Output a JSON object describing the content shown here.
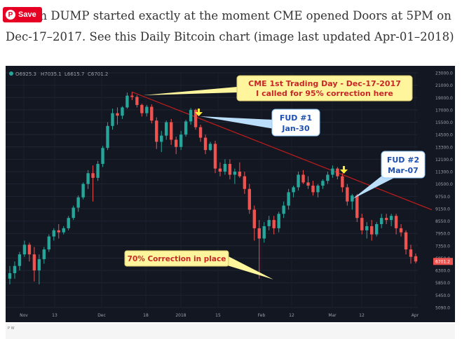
{
  "caption": {
    "line1": "Bitcoin DUMP started exactly at the moment CME opened Doors at 5PM on",
    "line2": "Dec-17–2017. See this Daily Bitcoin chart (image last updated Apr-01–2018)"
  },
  "save_button": {
    "label": "Save",
    "icon": "pinterest-icon"
  },
  "footer_text": "P W",
  "colors": {
    "background": "#131722",
    "up": "#26a69a",
    "down": "#ef5350",
    "trendline": "#b71c1c",
    "callout_fill": "#fff59d",
    "callout_text": "#c62828"
  },
  "chart_data": {
    "type": "candlestick",
    "ohlc_legend": {
      "o": "O6925.3",
      "h": "H7035.1",
      "l": "L6615.7",
      "c": "C6701.2"
    },
    "price_axis": [
      "23000.0",
      "21000.0",
      "19000.0",
      "17000.0",
      "15500.0",
      "14500.0",
      "13300.0",
      "12100.0",
      "11300.0",
      "10500.0",
      "9750.0",
      "9150.0",
      "8550.0",
      "7950.0",
      "7350.0",
      "6850.0",
      "6300.0",
      "5850.0",
      "5450.0",
      "5090.0"
    ],
    "last_price": "6701.2",
    "time_axis": [
      "Nov",
      "13",
      "Dec",
      "18",
      "2018",
      "15",
      "Feb",
      "12",
      "Mar",
      "12",
      "Apr"
    ],
    "candles": [
      {
        "o": 6000,
        "h": 6500,
        "l": 5800,
        "c": 6200
      },
      {
        "o": 6200,
        "h": 6700,
        "l": 6000,
        "c": 6500
      },
      {
        "o": 6500,
        "h": 7100,
        "l": 6300,
        "c": 7000
      },
      {
        "o": 7000,
        "h": 7600,
        "l": 6900,
        "c": 7400
      },
      {
        "o": 7400,
        "h": 7500,
        "l": 6700,
        "c": 7000
      },
      {
        "o": 7000,
        "h": 7300,
        "l": 5900,
        "c": 6300
      },
      {
        "o": 6300,
        "h": 7000,
        "l": 5800,
        "c": 6800
      },
      {
        "o": 6800,
        "h": 7300,
        "l": 6600,
        "c": 7200
      },
      {
        "o": 7200,
        "h": 7900,
        "l": 7100,
        "c": 7800
      },
      {
        "o": 7800,
        "h": 8200,
        "l": 7600,
        "c": 8100
      },
      {
        "o": 8100,
        "h": 8400,
        "l": 7700,
        "c": 8000
      },
      {
        "o": 8000,
        "h": 8300,
        "l": 7900,
        "c": 8200
      },
      {
        "o": 8200,
        "h": 8800,
        "l": 8100,
        "c": 8700
      },
      {
        "o": 8700,
        "h": 9300,
        "l": 8600,
        "c": 9200
      },
      {
        "o": 9200,
        "h": 9800,
        "l": 9000,
        "c": 9700
      },
      {
        "o": 9700,
        "h": 10600,
        "l": 9600,
        "c": 10500
      },
      {
        "o": 10500,
        "h": 11400,
        "l": 10200,
        "c": 11200
      },
      {
        "o": 11200,
        "h": 11700,
        "l": 9500,
        "c": 10900
      },
      {
        "o": 10900,
        "h": 12000,
        "l": 10700,
        "c": 11800
      },
      {
        "o": 11800,
        "h": 13400,
        "l": 11600,
        "c": 13200
      },
      {
        "o": 13200,
        "h": 15500,
        "l": 13000,
        "c": 15200
      },
      {
        "o": 15200,
        "h": 17200,
        "l": 14900,
        "c": 16600
      },
      {
        "o": 16600,
        "h": 17400,
        "l": 15300,
        "c": 16300
      },
      {
        "o": 16300,
        "h": 17600,
        "l": 15900,
        "c": 17400
      },
      {
        "o": 17400,
        "h": 19800,
        "l": 17200,
        "c": 19300
      },
      {
        "o": 19300,
        "h": 19900,
        "l": 18600,
        "c": 19100
      },
      {
        "o": 19100,
        "h": 19400,
        "l": 17400,
        "c": 17800
      },
      {
        "o": 17800,
        "h": 18000,
        "l": 16200,
        "c": 16600
      },
      {
        "o": 16600,
        "h": 17800,
        "l": 16200,
        "c": 17500
      },
      {
        "o": 17500,
        "h": 17900,
        "l": 15400,
        "c": 15700
      },
      {
        "o": 15700,
        "h": 16100,
        "l": 13100,
        "c": 13800
      },
      {
        "o": 13800,
        "h": 14800,
        "l": 12800,
        "c": 14400
      },
      {
        "o": 14400,
        "h": 15700,
        "l": 14000,
        "c": 15500
      },
      {
        "o": 15500,
        "h": 15900,
        "l": 13500,
        "c": 14000
      },
      {
        "o": 14000,
        "h": 14300,
        "l": 12600,
        "c": 13300
      },
      {
        "o": 13300,
        "h": 14800,
        "l": 13000,
        "c": 14500
      },
      {
        "o": 14500,
        "h": 15800,
        "l": 14300,
        "c": 15600
      },
      {
        "o": 15600,
        "h": 17300,
        "l": 15300,
        "c": 17000
      },
      {
        "o": 17000,
        "h": 17200,
        "l": 14900,
        "c": 15100
      },
      {
        "o": 15100,
        "h": 15300,
        "l": 13800,
        "c": 14200
      },
      {
        "o": 14200,
        "h": 14500,
        "l": 12600,
        "c": 13000
      },
      {
        "o": 13000,
        "h": 13800,
        "l": 12900,
        "c": 13600
      },
      {
        "o": 13600,
        "h": 13900,
        "l": 11200,
        "c": 11500
      },
      {
        "o": 11500,
        "h": 11900,
        "l": 11000,
        "c": 11300
      },
      {
        "o": 11300,
        "h": 12100,
        "l": 11100,
        "c": 11800
      },
      {
        "o": 11800,
        "h": 12100,
        "l": 10800,
        "c": 11100
      },
      {
        "o": 11100,
        "h": 11500,
        "l": 10500,
        "c": 11300
      },
      {
        "o": 11300,
        "h": 11900,
        "l": 10900,
        "c": 11000
      },
      {
        "o": 11000,
        "h": 11300,
        "l": 9900,
        "c": 10200
      },
      {
        "o": 10200,
        "h": 10500,
        "l": 8900,
        "c": 9100
      },
      {
        "o": 9100,
        "h": 9300,
        "l": 7600,
        "c": 8200
      },
      {
        "o": 8200,
        "h": 8600,
        "l": 6000,
        "c": 7700
      },
      {
        "o": 7700,
        "h": 8500,
        "l": 7500,
        "c": 8300
      },
      {
        "o": 8300,
        "h": 8800,
        "l": 8100,
        "c": 8600
      },
      {
        "o": 8600,
        "h": 8800,
        "l": 7900,
        "c": 8200
      },
      {
        "o": 8200,
        "h": 9000,
        "l": 8000,
        "c": 8900
      },
      {
        "o": 8900,
        "h": 9500,
        "l": 8700,
        "c": 9300
      },
      {
        "o": 9300,
        "h": 10200,
        "l": 9100,
        "c": 10000
      },
      {
        "o": 10000,
        "h": 10400,
        "l": 9700,
        "c": 10300
      },
      {
        "o": 10300,
        "h": 11300,
        "l": 10100,
        "c": 11100
      },
      {
        "o": 11100,
        "h": 11400,
        "l": 10500,
        "c": 10600
      },
      {
        "o": 10600,
        "h": 11000,
        "l": 10200,
        "c": 10400
      },
      {
        "o": 10400,
        "h": 10700,
        "l": 9800,
        "c": 10000
      },
      {
        "o": 10000,
        "h": 10500,
        "l": 9700,
        "c": 10400
      },
      {
        "o": 10400,
        "h": 10800,
        "l": 10200,
        "c": 10700
      },
      {
        "o": 10700,
        "h": 11300,
        "l": 10500,
        "c": 11100
      },
      {
        "o": 11100,
        "h": 11700,
        "l": 10900,
        "c": 11500
      },
      {
        "o": 11500,
        "h": 11600,
        "l": 10800,
        "c": 11000
      },
      {
        "o": 11000,
        "h": 11200,
        "l": 10000,
        "c": 10300
      },
      {
        "o": 10300,
        "h": 10500,
        "l": 9300,
        "c": 9500
      },
      {
        "o": 9500,
        "h": 9900,
        "l": 9100,
        "c": 9800
      },
      {
        "o": 9800,
        "h": 9900,
        "l": 8500,
        "c": 8700
      },
      {
        "o": 8700,
        "h": 8900,
        "l": 7900,
        "c": 8100
      },
      {
        "o": 8100,
        "h": 8500,
        "l": 7700,
        "c": 8300
      },
      {
        "o": 8300,
        "h": 8600,
        "l": 7600,
        "c": 7900
      },
      {
        "o": 7900,
        "h": 8500,
        "l": 7800,
        "c": 8400
      },
      {
        "o": 8400,
        "h": 8900,
        "l": 8200,
        "c": 8700
      },
      {
        "o": 8700,
        "h": 8900,
        "l": 8400,
        "c": 8600
      },
      {
        "o": 8600,
        "h": 8900,
        "l": 8300,
        "c": 8800
      },
      {
        "o": 8800,
        "h": 8900,
        "l": 7900,
        "c": 8200
      },
      {
        "o": 8200,
        "h": 8400,
        "l": 7800,
        "c": 8000
      },
      {
        "o": 8000,
        "h": 8100,
        "l": 7000,
        "c": 7200
      },
      {
        "o": 7200,
        "h": 7400,
        "l": 6600,
        "c": 6900
      },
      {
        "o": 6925,
        "h": 7035,
        "l": 6616,
        "c": 6701
      }
    ],
    "annotations": {
      "cme": {
        "line1": "CME 1st Trading Day - Dec-17-2017",
        "line2": "I called for 95% correction here"
      },
      "fud1": {
        "line1": "FUD #1",
        "line2": "Jan-30"
      },
      "fud2": {
        "line1": "FUD #2",
        "line2": "Mar-07"
      },
      "correction": {
        "text": "70% Correction in place"
      }
    }
  }
}
